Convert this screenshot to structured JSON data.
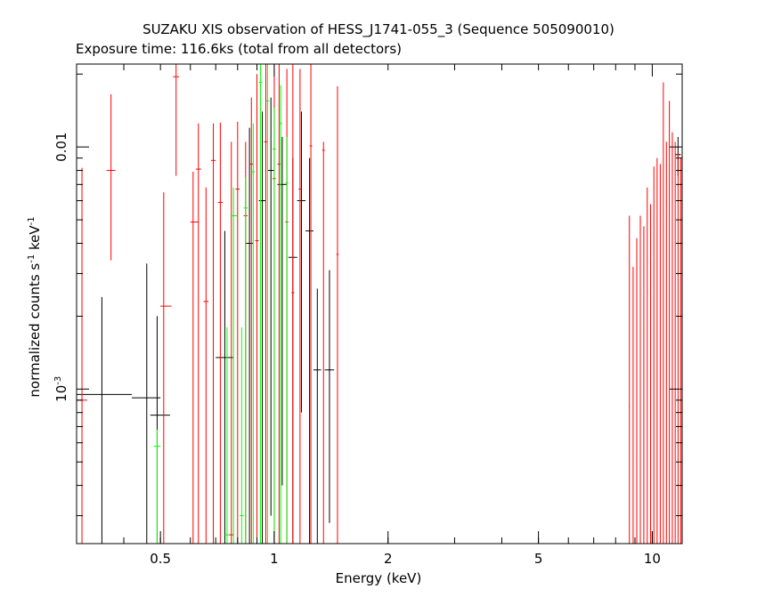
{
  "chart_data": {
    "type": "scatter",
    "title": "SUZAKU XIS observation of HESS_J1741-055_3 (Sequence 505090010)",
    "subtitle": "Exposure time: 116.6ks (total from all detectors)",
    "xlabel": "Energy (keV)",
    "ylabel_main": "normalized counts s",
    "ylabel_sup1": "-1",
    "ylabel_mid": " keV",
    "ylabel_sup2": "-1",
    "x_scale": "log",
    "y_scale": "log",
    "xlim": [
      0.3,
      12
    ],
    "ylim": [
      0.00023,
      0.022
    ],
    "x_ticks": [
      {
        "value": 0.5,
        "label": "0.5"
      },
      {
        "value": 1,
        "label": "1"
      },
      {
        "value": 2,
        "label": "2"
      },
      {
        "value": 5,
        "label": "5"
      },
      {
        "value": 10,
        "label": "10"
      }
    ],
    "y_ticks": [
      {
        "value": 0.01,
        "label": "0.01",
        "base": "",
        "exp": ""
      },
      {
        "value": 0.001,
        "label": "",
        "base": "10",
        "exp": "-3"
      }
    ],
    "colors": {
      "black": "#000000",
      "red": "#ff0000",
      "green": "#00ff00"
    },
    "series": [
      {
        "color": "#000000",
        "points": [
          [
            0.35,
            0.00095,
            0.3,
            0.42,
            0.00023,
            0.0024
          ],
          [
            0.46,
            0.00092,
            0.42,
            0.5,
            0.00023,
            0.0033
          ],
          [
            0.49,
            0.00078,
            0.47,
            0.53,
            0.00023,
            0.002
          ],
          [
            0.74,
            0.00135,
            0.7,
            0.78,
            0.00023,
            0.0045
          ],
          [
            0.86,
            0.004,
            0.84,
            0.88,
            0.00023,
            0.012
          ],
          [
            0.93,
            0.006,
            0.91,
            0.95,
            0.00023,
            0.014
          ],
          [
            0.98,
            0.008,
            0.96,
            1.0,
            0.0003,
            0.016
          ],
          [
            1.05,
            0.007,
            1.02,
            1.08,
            0.0004,
            0.011
          ],
          [
            1.12,
            0.0035,
            1.09,
            1.15,
            0.00023,
            0.009
          ],
          [
            1.18,
            0.006,
            1.15,
            1.21,
            0.0008,
            0.014
          ],
          [
            1.24,
            0.0045,
            1.21,
            1.27,
            0.00023,
            0.009
          ],
          [
            1.3,
            0.0012,
            1.27,
            1.33,
            0.00023,
            0.0026
          ],
          [
            1.4,
            0.0012,
            1.36,
            1.44,
            0.00028,
            0.0031
          ],
          [
            11.7,
            0.0093,
            11.5,
            11.9,
            0.0076,
            0.011
          ]
        ]
      },
      {
        "color": "#ff0000",
        "points": [
          [
            0.31,
            0.0009,
            0.3,
            0.32,
            0.00023,
            0.0082
          ],
          [
            0.37,
            0.008,
            0.36,
            0.38,
            0.0034,
            0.0165
          ],
          [
            0.51,
            0.0022,
            0.5,
            0.535,
            0.00023,
            0.0065
          ],
          [
            0.55,
            0.0195,
            0.54,
            0.56,
            0.0076,
            0.024
          ],
          [
            0.61,
            0.0049,
            0.6,
            0.63,
            0.00023,
            0.0079
          ],
          [
            0.63,
            0.0081,
            0.62,
            0.64,
            0.00023,
            0.0125
          ],
          [
            0.66,
            0.0023,
            0.65,
            0.67,
            0.00023,
            0.0068
          ],
          [
            0.69,
            0.0088,
            0.68,
            0.7,
            0.00023,
            0.0125
          ],
          [
            0.72,
            0.0059,
            0.71,
            0.73,
            0.00023,
            0.0126
          ],
          [
            0.77,
            0.00025,
            0.76,
            0.78,
            0.00023,
            0.0105
          ],
          [
            0.8,
            0.0067,
            0.79,
            0.81,
            0.00023,
            0.0127
          ],
          [
            0.84,
            0.0052,
            0.83,
            0.85,
            0.00023,
            0.0105
          ],
          [
            0.87,
            0.0085,
            0.86,
            0.88,
            0.00023,
            0.016
          ],
          [
            0.9,
            0.0041,
            0.89,
            0.91,
            0.00023,
            0.02
          ],
          [
            0.95,
            0.0105,
            0.94,
            0.96,
            0.00023,
            0.023
          ],
          [
            1.0,
            0.0074,
            0.99,
            1.01,
            0.00023,
            0.022
          ],
          [
            1.03,
            0.0085,
            1.02,
            1.04,
            0.00023,
            0.024
          ],
          [
            1.08,
            0.0049,
            1.07,
            1.09,
            0.00023,
            0.021
          ],
          [
            1.12,
            0.0025,
            1.11,
            1.13,
            0.00023,
            0.022
          ],
          [
            1.17,
            0.0067,
            1.16,
            1.18,
            0.00023,
            0.021
          ],
          [
            1.25,
            0.0101,
            1.24,
            1.26,
            0.00023,
            0.024
          ],
          [
            1.35,
            0.0097,
            1.34,
            1.36,
            0.00023,
            0.0105
          ],
          [
            1.47,
            0.0036,
            1.46,
            1.48,
            0.00023,
            0.0178
          ],
          [
            8.7,
            0.00085,
            8.68,
            8.72,
            0.00023,
            0.0052
          ],
          [
            8.9,
            0.0005,
            8.88,
            8.92,
            0.00023,
            0.0032
          ],
          [
            9.1,
            0.0011,
            9.08,
            9.12,
            0.00023,
            0.0042
          ],
          [
            9.3,
            0.0014,
            9.28,
            9.32,
            0.00023,
            0.0052
          ],
          [
            9.5,
            0.0018,
            9.48,
            9.52,
            0.00023,
            0.0047
          ],
          [
            9.7,
            0.0025,
            9.68,
            9.72,
            0.00023,
            0.0068
          ],
          [
            9.9,
            0.003,
            9.88,
            9.92,
            0.00023,
            0.0058
          ],
          [
            10.1,
            0.0033,
            10.08,
            10.12,
            0.00023,
            0.0083
          ],
          [
            10.3,
            0.0042,
            10.28,
            10.32,
            0.00023,
            0.009
          ],
          [
            10.5,
            0.0047,
            10.48,
            10.52,
            0.00023,
            0.0085
          ],
          [
            10.7,
            0.0053,
            10.68,
            10.72,
            0.00023,
            0.0185
          ],
          [
            10.9,
            0.006,
            10.88,
            10.92,
            0.00023,
            0.0105
          ],
          [
            11.1,
            0.0065,
            11.08,
            11.12,
            0.00023,
            0.0155
          ],
          [
            11.3,
            0.0072,
            11.28,
            11.32,
            0.00023,
            0.0115
          ],
          [
            11.5,
            0.0078,
            11.48,
            11.52,
            0.00023,
            0.0105
          ],
          [
            11.7,
            0.0075,
            11.68,
            11.72,
            0.00023,
            0.0095
          ],
          [
            11.9,
            0.0072,
            11.88,
            11.92,
            0.00023,
            0.009
          ]
        ]
      },
      {
        "color": "#00ff00",
        "points": [
          [
            0.49,
            0.00058,
            0.48,
            0.5,
            0.00023,
            0.00068
          ],
          [
            0.75,
            0.00025,
            0.74,
            0.76,
            0.00023,
            0.0018
          ],
          [
            0.78,
            0.0052,
            0.77,
            0.8,
            0.00023,
            0.0068
          ],
          [
            0.82,
            0.0003,
            0.81,
            0.83,
            0.00023,
            0.0018
          ],
          [
            0.84,
            0.0056,
            0.83,
            0.85,
            0.00023,
            0.0075
          ],
          [
            0.88,
            0.0079,
            0.87,
            0.89,
            0.00023,
            0.0125
          ],
          [
            0.92,
            0.0185,
            0.91,
            0.93,
            0.00023,
            0.0245
          ],
          [
            0.96,
            0.0155,
            0.95,
            0.97,
            0.00023,
            0.022
          ],
          [
            1.0,
            0.0098,
            0.99,
            1.01,
            0.00023,
            0.0145
          ],
          [
            1.04,
            0.0125,
            1.03,
            1.05,
            0.00023,
            0.018
          ],
          [
            1.08,
            0.0071,
            1.07,
            1.09,
            0.00023,
            0.011
          ]
        ]
      }
    ]
  }
}
